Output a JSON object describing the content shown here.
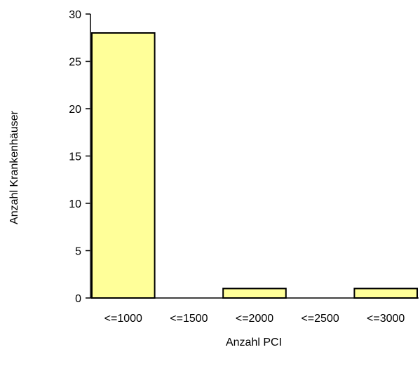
{
  "chart_data": {
    "type": "bar",
    "categories": [
      "<=1000",
      "<=1500",
      "<=2000",
      "<=2500",
      "<=3000"
    ],
    "values": [
      28,
      0,
      1,
      0,
      1
    ],
    "xlabel": "Anzahl PCI",
    "ylabel": "Anzahl Krankenhäuser",
    "ylim": [
      0,
      30
    ],
    "yticks": [
      0,
      5,
      10,
      15,
      20,
      25,
      30
    ],
    "grid": false,
    "legend": "none",
    "colors": {
      "bar_fill": "#ffff99",
      "bar_stroke": "#000000"
    }
  }
}
